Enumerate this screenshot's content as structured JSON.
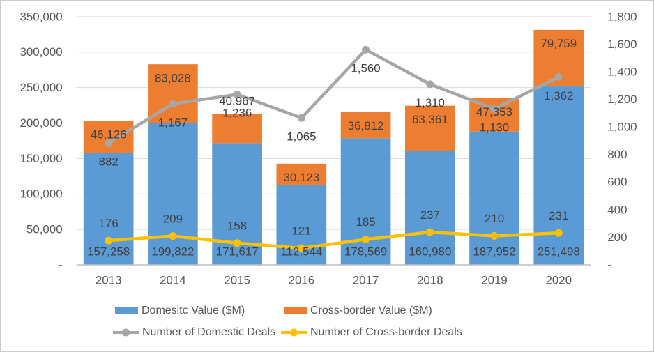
{
  "chart_data": {
    "type": "combo-stacked-bar-line",
    "categories": [
      "2013",
      "2014",
      "2015",
      "2016",
      "2017",
      "2018",
      "2019",
      "2020"
    ],
    "series": [
      {
        "name": "Domesitc Value ($M)",
        "type": "bar",
        "stack": "values",
        "axis": "left",
        "color": "#5B9BD5",
        "values": [
          157258,
          199822,
          171617,
          112544,
          178569,
          160980,
          187952,
          251498
        ],
        "labels": [
          "157,258",
          "199,822",
          "171,617",
          "112,544",
          "178,569",
          "160,980",
          "187,952",
          "251,498"
        ]
      },
      {
        "name": "Cross-border Value ($M)",
        "type": "bar",
        "stack": "values",
        "axis": "left",
        "color": "#ED7D31",
        "values": [
          46126,
          83028,
          40967,
          30123,
          36812,
          63361,
          47353,
          79759
        ],
        "labels": [
          "46,126",
          "83,028",
          "40,967",
          "30,123",
          "36,812",
          "63,361",
          "47,353",
          "79,759"
        ]
      },
      {
        "name": "Number of Domestic Deals",
        "type": "line",
        "axis": "right",
        "color": "#A6A6A6",
        "values": [
          882,
          1167,
          1236,
          1065,
          1560,
          1310,
          1130,
          1362
        ],
        "labels": [
          "882",
          "1,167",
          "1,236",
          "1,065",
          "1,560",
          "1,310",
          "1,130",
          "1,362"
        ]
      },
      {
        "name": "Number of Cross-border Deals",
        "type": "line",
        "axis": "right",
        "color": "#FFC000",
        "values": [
          176,
          209,
          158,
          121,
          185,
          237,
          210,
          231
        ],
        "labels": [
          "176",
          "209",
          "158",
          "121",
          "185",
          "237",
          "210",
          "231"
        ]
      }
    ],
    "left_axis": {
      "min": 0,
      "max": 350000,
      "step": 50000,
      "tick_labels": [
        "-",
        "50,000",
        "100,000",
        "150,000",
        "200,000",
        "250,000",
        "300,000",
        "350,000"
      ]
    },
    "right_axis": {
      "min": 0,
      "max": 1800,
      "step": 200,
      "tick_labels": [
        "-",
        "200",
        "400",
        "600",
        "800",
        "1,000",
        "1,200",
        "1,400",
        "1,600",
        "1,800"
      ]
    },
    "legend_position": "bottom",
    "grid": true,
    "theme": {
      "tick_text_color": "#595959",
      "data_label_color": "#404040",
      "grid_color": "#D9D9D9",
      "axis_line_color": "#BFBFBF",
      "frame_border_color": "#cbcbcb",
      "background": "#FFFFFF"
    }
  }
}
